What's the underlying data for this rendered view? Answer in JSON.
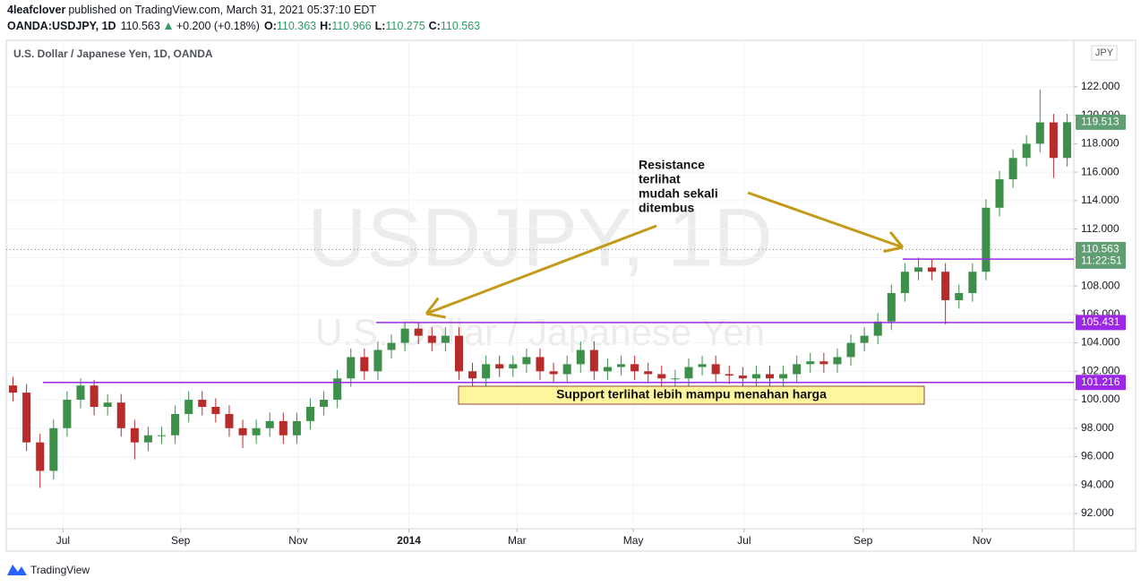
{
  "header": {
    "author": "4leafclover",
    "published": "published on TradingView.com, March 31, 2021 05:37:10 EDT",
    "symbol": "OANDA:USDJPY, 1D",
    "price": "110.563",
    "change": "+0.200 (+0.18%)",
    "ohlc": [
      {
        "key": "O:",
        "value": "110.363"
      },
      {
        "key": "H:",
        "value": "110.966"
      },
      {
        "key": "L:",
        "value": "110.275"
      },
      {
        "key": "C:",
        "value": "110.563"
      }
    ]
  },
  "footer": "TradingView",
  "chart_data": {
    "type": "candlestick",
    "title": "U.S. Dollar / Japanese Yen, 1D, OANDA",
    "watermark": "USDJPY, 1D",
    "watermark_subtitle": "U.S. Dollar / Japanese Yen",
    "currency": "JPY",
    "up_color": "#3d8f4a",
    "down_color": "#b72b2b",
    "level_color": "#9c27e6",
    "annotation_color": "#c49a1a",
    "xlim": [
      -0.5,
      78.5
    ],
    "xticks": [
      {
        "value": 3.7,
        "label": "Jul"
      },
      {
        "value": 12.4,
        "label": "Sep"
      },
      {
        "value": 21.1,
        "label": "Nov"
      },
      {
        "value": 29.3,
        "label": "2014"
      },
      {
        "value": 37.3,
        "label": "Mar"
      },
      {
        "value": 45.9,
        "label": "May"
      },
      {
        "value": 54.1,
        "label": "Jul"
      },
      {
        "value": 62.9,
        "label": "Sep"
      },
      {
        "value": 71.7,
        "label": "Nov"
      }
    ],
    "ylim": [
      90.93,
      125.27
    ],
    "yticks": [
      {
        "value": 92,
        "label": "92.000"
      },
      {
        "value": 94,
        "label": "94.000"
      },
      {
        "value": 96,
        "label": "96.000"
      },
      {
        "value": 98,
        "label": "98.000"
      },
      {
        "value": 100,
        "label": "100.000"
      },
      {
        "value": 102,
        "label": "102.000"
      },
      {
        "value": 104,
        "label": "104.000"
      },
      {
        "value": 106,
        "label": "106.000"
      },
      {
        "value": 108,
        "label": "108.000"
      },
      {
        "value": 110,
        "label": "110.000"
      },
      {
        "value": 112,
        "label": "112.000"
      },
      {
        "value": 114,
        "label": "114.000"
      },
      {
        "value": 116,
        "label": "116.000"
      },
      {
        "value": 118,
        "label": "118.000"
      },
      {
        "value": 120,
        "label": "120.000"
      },
      {
        "value": 122,
        "label": "122.000"
      }
    ],
    "grid": true,
    "open": [
      101,
      100.5,
      97,
      95,
      98,
      100,
      101,
      99.5,
      99.8,
      98,
      97,
      97.5,
      97.5,
      99,
      100,
      99.5,
      99,
      98,
      97.5,
      98,
      98.5,
      97.5,
      98.5,
      99.5,
      100,
      101.5,
      103,
      102,
      103.5,
      104,
      105,
      104.5,
      104,
      104.5,
      102,
      101.5,
      102.5,
      102.2,
      102.5,
      103,
      102,
      101.8,
      102.5,
      103.5,
      102,
      102.3,
      102.5,
      102,
      101.8,
      101.5,
      101.5,
      102.3,
      102.5,
      101.8,
      101.7,
      101.5,
      101.8,
      101.5,
      101.8,
      102.5,
      102.7,
      102.5,
      103,
      104,
      104.5,
      105.5,
      107.5,
      109,
      109.3,
      109,
      107,
      107.5,
      109,
      113.5,
      115.5,
      117,
      118,
      119.5,
      117
    ],
    "high": [
      101.6,
      101.1,
      97.6,
      98.6,
      100.6,
      101.5,
      101.4,
      100.4,
      100.4,
      98.6,
      98.1,
      98.1,
      99.6,
      100.6,
      100.6,
      100.1,
      99.6,
      98.6,
      98.6,
      99.1,
      99.1,
      99.1,
      100.1,
      100.6,
      102.1,
      103.6,
      103.6,
      104.1,
      104.6,
      105.4,
      105.4,
      105.1,
      105.1,
      105.1,
      102.6,
      103.1,
      103.1,
      103.1,
      103.6,
      103.6,
      102.6,
      103.1,
      104.1,
      104.1,
      102.9,
      103.1,
      103.1,
      102.6,
      102.4,
      102.1,
      102.9,
      103.1,
      103.1,
      102.4,
      102.3,
      102.4,
      102.4,
      102.4,
      103.1,
      103.3,
      103.3,
      103.6,
      104.6,
      105.1,
      106.1,
      108.1,
      109.6,
      110,
      109.9,
      109.6,
      108.1,
      109.6,
      114.1,
      116.1,
      117.6,
      118.6,
      121.8,
      120.1,
      120.1
    ],
    "low": [
      99.9,
      96.4,
      93.8,
      94.4,
      97.4,
      99.4,
      98.9,
      98.9,
      97.4,
      95.8,
      96.4,
      96.9,
      96.9,
      98.4,
      98.9,
      98.4,
      97.4,
      96.6,
      96.9,
      97.4,
      96.9,
      96.9,
      97.9,
      98.9,
      99.4,
      100.9,
      101.4,
      101.4,
      102.9,
      103.4,
      103.9,
      103.4,
      103.4,
      101.4,
      100.8,
      100.9,
      101.6,
      101.6,
      101.9,
      101.4,
      101.2,
      101.2,
      101.9,
      101.4,
      101.4,
      101.7,
      101.4,
      101.2,
      100.9,
      100.9,
      100.9,
      101.7,
      101.2,
      101.1,
      100.9,
      100.9,
      100.9,
      100.9,
      101.2,
      101.9,
      101.9,
      101.9,
      102.4,
      103.4,
      103.9,
      104.9,
      106.9,
      108.4,
      108.4,
      105.3,
      106.4,
      106.9,
      108.4,
      112.9,
      114.9,
      116.4,
      117.4,
      115.6,
      116.4
    ],
    "close": [
      100.5,
      97,
      95,
      98,
      100,
      101,
      99.5,
      99.8,
      98,
      97,
      97.5,
      97.5,
      99,
      100,
      99.5,
      99,
      98,
      97.5,
      98,
      98.5,
      97.5,
      98.5,
      99.5,
      100,
      101.5,
      103,
      102,
      103.5,
      104,
      105,
      104.5,
      104,
      104.5,
      102,
      101.5,
      102.5,
      102.2,
      102.5,
      103,
      102,
      101.8,
      102.5,
      103.5,
      102,
      102.3,
      102.5,
      102,
      101.8,
      101.5,
      101.5,
      102.3,
      102.5,
      101.8,
      101.7,
      101.5,
      101.8,
      101.5,
      101.8,
      102.5,
      102.7,
      102.5,
      103,
      104,
      104.5,
      105.5,
      107.5,
      109,
      109.3,
      109,
      107,
      107.5,
      109,
      113.5,
      115.5,
      117,
      118,
      119.5,
      117,
      119.513
    ],
    "levels": [
      101.216,
      105.431,
      109.891
    ],
    "last_price": 110.563,
    "countdown": "11:22:51",
    "annotations": {
      "resistance": [
        "Resistance",
        "terlihat",
        "mudah sekali",
        "ditembus"
      ],
      "support": "Support terlihat lebih mampu menahan harga"
    }
  }
}
